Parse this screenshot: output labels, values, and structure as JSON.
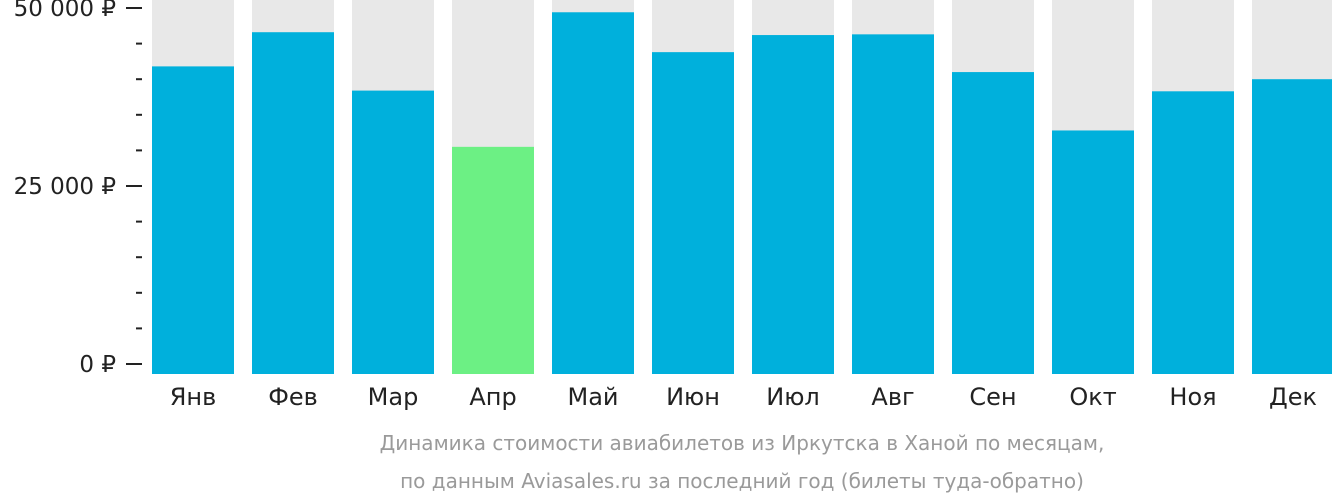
{
  "chart_data": {
    "type": "bar",
    "categories": [
      "Янв",
      "Фев",
      "Мар",
      "Апр",
      "Май",
      "Июн",
      "Июл",
      "Авг",
      "Сен",
      "Окт",
      "Ноя",
      "Дек"
    ],
    "values": [
      41800,
      46600,
      38400,
      30500,
      49400,
      43800,
      46200,
      46300,
      41000,
      32800,
      38300,
      40000
    ],
    "ylim": [
      0,
      52000
    ],
    "y_ticks": [
      {
        "value": 0,
        "label": "0 ₽"
      },
      {
        "value": 25000,
        "label": "25 000 ₽"
      },
      {
        "value": 50000,
        "label": "50 000 ₽"
      }
    ],
    "y_minor_step": 5000,
    "highlight_index": 3,
    "title": "",
    "xlabel": "",
    "ylabel": "",
    "grid": false,
    "colors": {
      "bar": "#00b0dc",
      "highlight": "#6cf084",
      "background_bar": "#e8e8e8",
      "axis": "#222222"
    }
  },
  "caption": {
    "line1": "Динамика стоимости авиабилетов из Иркутска в Ханой по месяцам,",
    "line2": "по данным Aviasales.ru за последний год (билеты туда-обратно)"
  }
}
